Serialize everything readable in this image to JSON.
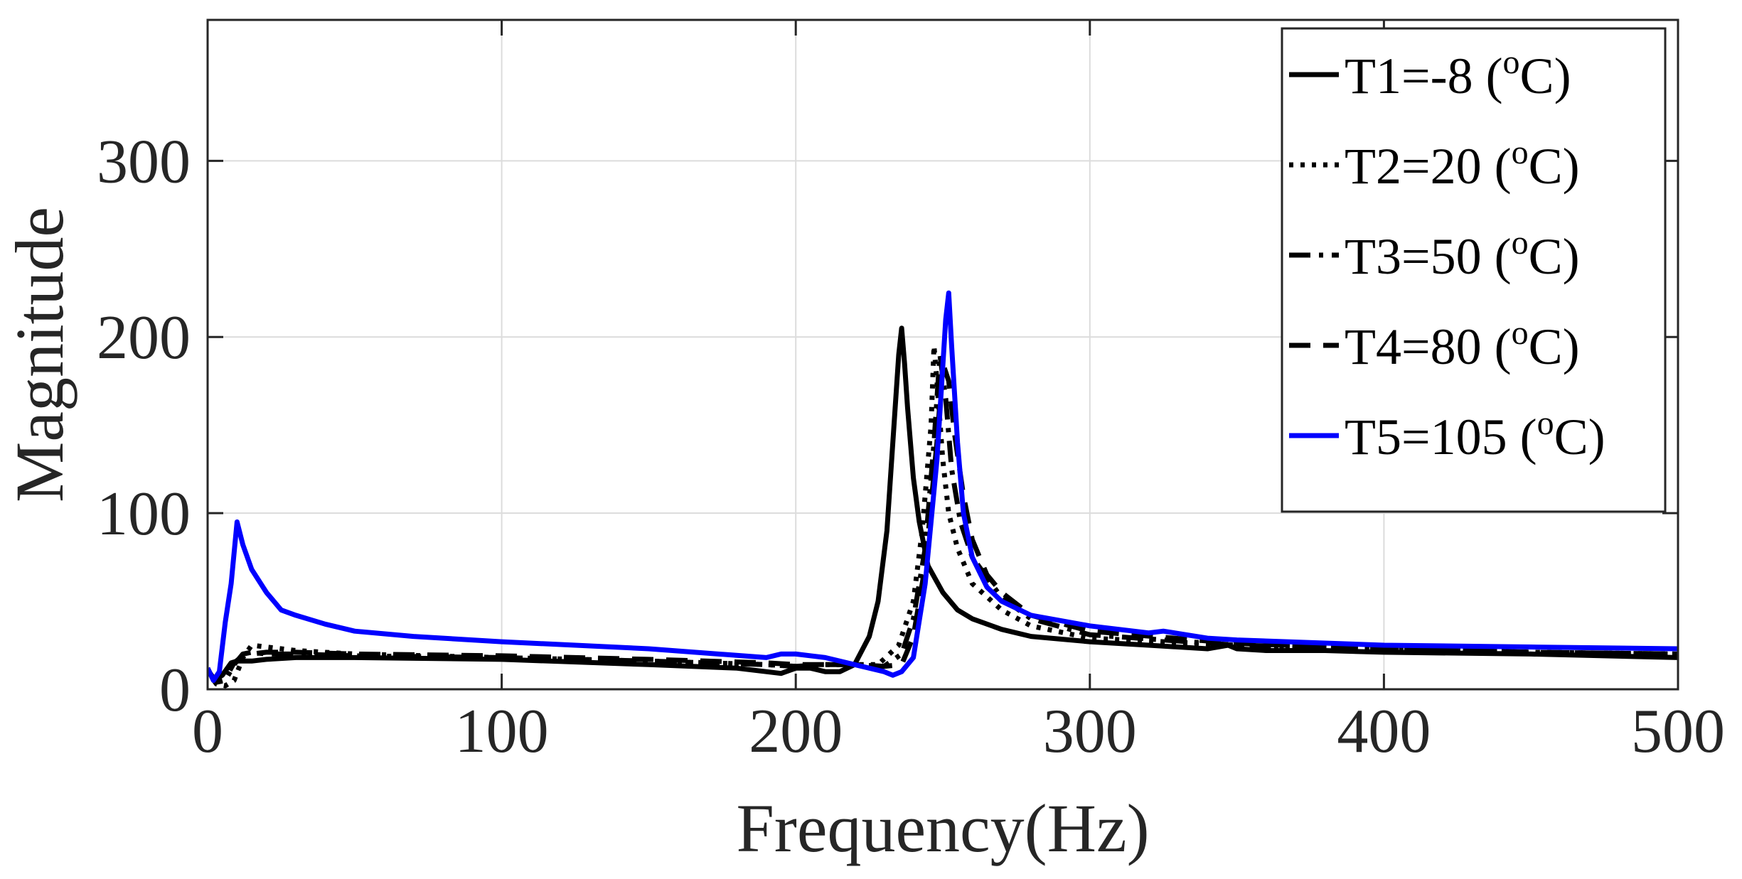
{
  "chart_data": {
    "type": "line",
    "xlabel": "Frequency(Hz)",
    "ylabel": "Magnitude",
    "xlim": [
      0,
      500
    ],
    "ylim": [
      0,
      380
    ],
    "xticks": [
      0,
      100,
      200,
      300,
      400,
      500
    ],
    "yticks": [
      0,
      100,
      200,
      300
    ],
    "grid": true,
    "legend_position": "top-right",
    "series": [
      {
        "name": "T1",
        "label": "T1=-8 (",
        "sup": "o",
        "unit": "C)",
        "color": "#000000",
        "style": "solid",
        "x": [
          0,
          2,
          5,
          8,
          10,
          15,
          20,
          30,
          50,
          100,
          150,
          180,
          195,
          200,
          205,
          210,
          215,
          220,
          225,
          228,
          231,
          233,
          235,
          236,
          237,
          238,
          240,
          242,
          245,
          250,
          255,
          260,
          270,
          280,
          300,
          320,
          340,
          347,
          350,
          360,
          380,
          400,
          450,
          500
        ],
        "y": [
          12,
          5,
          8,
          15,
          16,
          16,
          17,
          18,
          18,
          17,
          14,
          12,
          9,
          12,
          12,
          10,
          10,
          14,
          30,
          50,
          90,
          140,
          190,
          205,
          185,
          160,
          120,
          95,
          70,
          55,
          45,
          40,
          34,
          30,
          27,
          25,
          23,
          25,
          23,
          22,
          22,
          21,
          20,
          18
        ]
      },
      {
        "name": "T2",
        "label": "T2=20 (",
        "sup": "o",
        "unit": "C)",
        "color": "#000000",
        "style": "dotted",
        "x": [
          0,
          3,
          6,
          9,
          12,
          15,
          20,
          30,
          50,
          100,
          150,
          190,
          200,
          210,
          220,
          228,
          235,
          240,
          243,
          246,
          247,
          248,
          250,
          252,
          255,
          260,
          270,
          280,
          300,
          350,
          400,
          450,
          500
        ],
        "y": [
          10,
          3,
          2,
          5,
          18,
          25,
          24,
          22,
          20,
          18,
          16,
          14,
          13,
          14,
          14,
          14,
          25,
          50,
          90,
          150,
          195,
          175,
          130,
          100,
          80,
          60,
          45,
          36,
          29,
          25,
          23,
          21,
          20
        ]
      },
      {
        "name": "T3",
        "label": "T3=50 (",
        "sup": "o",
        "unit": "C)",
        "color": "#000000",
        "style": "dashdot",
        "x": [
          0,
          3,
          6,
          9,
          12,
          15,
          20,
          30,
          50,
          100,
          150,
          190,
          200,
          210,
          220,
          230,
          236,
          240,
          244,
          247,
          249,
          251,
          253,
          256,
          260,
          270,
          280,
          300,
          350,
          400,
          450,
          500
        ],
        "y": [
          11,
          4,
          5,
          14,
          20,
          21,
          20,
          20,
          19,
          18,
          16,
          14,
          13,
          14,
          14,
          13,
          20,
          40,
          80,
          140,
          190,
          165,
          125,
          95,
          75,
          52,
          40,
          31,
          25,
          23,
          21,
          20
        ]
      },
      {
        "name": "T4",
        "label": "T4=80 (",
        "sup": "o",
        "unit": "C)",
        "color": "#000000",
        "style": "dashed",
        "x": [
          0,
          3,
          6,
          9,
          12,
          15,
          20,
          30,
          50,
          100,
          150,
          190,
          200,
          210,
          220,
          230,
          236,
          240,
          244,
          248,
          250,
          252,
          254,
          257,
          260,
          265,
          270,
          280,
          300,
          350,
          400,
          450,
          500
        ],
        "y": [
          11,
          4,
          6,
          15,
          19,
          20,
          21,
          21,
          20,
          19,
          17,
          15,
          14,
          14,
          14,
          13,
          14,
          30,
          70,
          140,
          185,
          175,
          145,
          110,
          85,
          65,
          55,
          42,
          33,
          26,
          23,
          21,
          20
        ]
      },
      {
        "name": "T5",
        "label": "T5=105 (",
        "sup": "o",
        "unit": "C)",
        "color": "#0000ff",
        "style": "solid",
        "x": [
          0,
          2,
          4,
          6,
          8,
          10,
          12,
          15,
          20,
          25,
          30,
          40,
          50,
          70,
          100,
          150,
          190,
          195,
          200,
          210,
          220,
          230,
          233,
          236,
          240,
          244,
          248,
          251,
          252,
          253,
          255,
          257,
          260,
          265,
          270,
          280,
          300,
          320,
          325,
          340,
          350,
          400,
          450,
          500
        ],
        "y": [
          12,
          5,
          10,
          38,
          60,
          95,
          82,
          68,
          55,
          45,
          42,
          37,
          33,
          30,
          27,
          23,
          18,
          20,
          20,
          18,
          14,
          10,
          8,
          10,
          18,
          60,
          130,
          210,
          225,
          195,
          140,
          100,
          75,
          58,
          50,
          42,
          36,
          32,
          33,
          29,
          28,
          25,
          24,
          23
        ]
      }
    ]
  }
}
